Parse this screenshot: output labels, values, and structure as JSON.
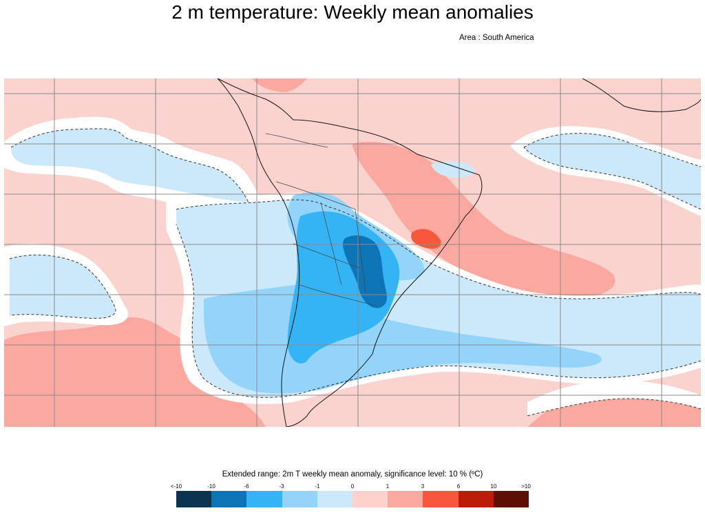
{
  "header": {
    "title": "2 m temperature: Weekly mean anomalies",
    "area": "Area : South America"
  },
  "legend": {
    "title": "Extended range: 2m T weekly mean anomaly, significance level: 10 % (ºC)",
    "labels": [
      "<-10",
      "-10",
      "-6",
      "-3",
      "-1",
      "0",
      "1",
      "3",
      "6",
      "10",
      ">10"
    ],
    "colors": [
      "#0a3350",
      "#0d75b5",
      "#35b4f5",
      "#94d4fa",
      "#cce9fb",
      "#fdd0cc",
      "#fba9a0",
      "#f8573b",
      "#bb1d08",
      "#5d0f06"
    ]
  },
  "map": {
    "colors": {
      "ocean_background": "#fbd3ce",
      "land_background": "#fbd3ce",
      "insignificant": "#ffffff",
      "cold_light": "#cce9fb",
      "cold_medium": "#94d4fa",
      "cold_strong": "#35b4f5",
      "cold_very_strong": "#0d75b5",
      "warm_light": "#fba9a0",
      "warm_medium": "#f8573b",
      "gridlines": "#8a8a8a",
      "coastline": "#111111"
    }
  }
}
